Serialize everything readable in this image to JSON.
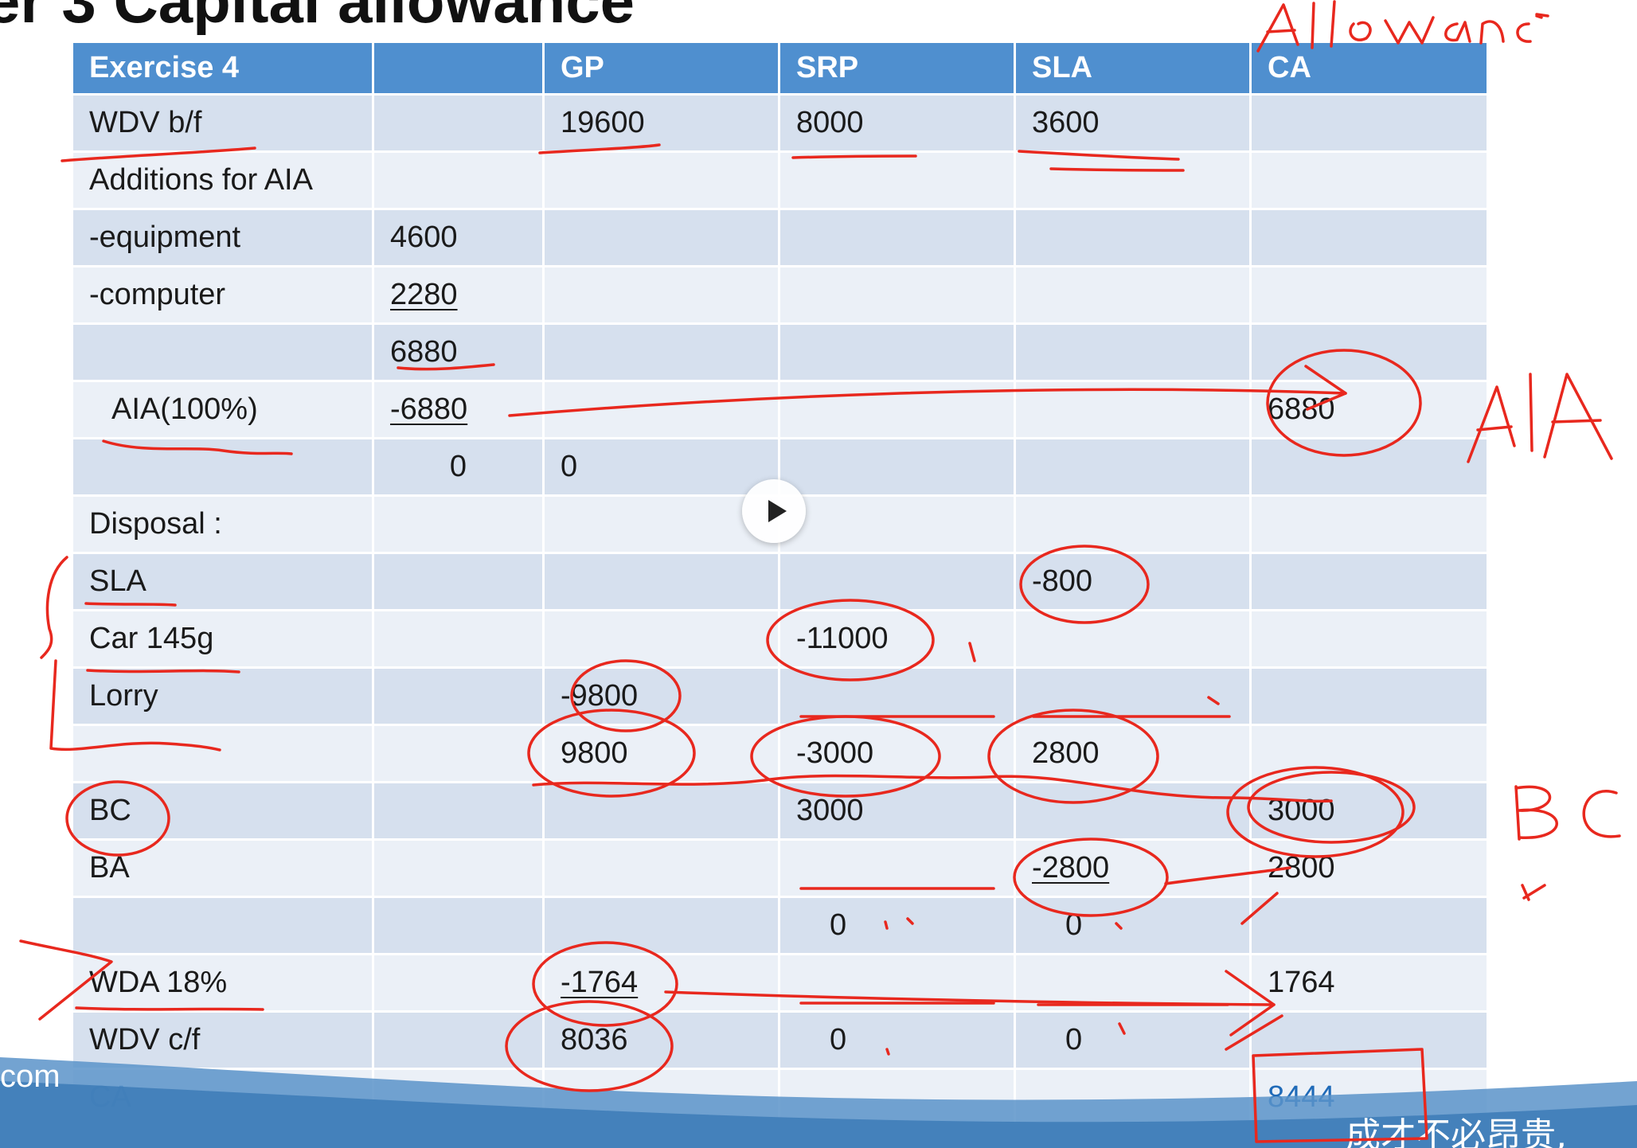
{
  "slide": {
    "title": "er 3  Capital allowance"
  },
  "table": {
    "headers": [
      "Exercise  4",
      "",
      "GP",
      "SRP",
      "SLA",
      "CA"
    ],
    "rows": [
      [
        "WDV b/f",
        "",
        "19600",
        "8000",
        "3600",
        ""
      ],
      [
        "Additions for AIA",
        "",
        "",
        "",
        "",
        ""
      ],
      [
        "-equipment",
        "4600",
        "",
        "",
        "",
        ""
      ],
      [
        "-computer",
        "2280",
        "",
        "",
        "",
        ""
      ],
      [
        "",
        "6880",
        "",
        "",
        "",
        ""
      ],
      [
        "AIA(100%)",
        "-6880",
        "",
        "",
        "",
        "6880"
      ],
      [
        "",
        "0",
        "0",
        "",
        "",
        ""
      ],
      [
        "Disposal :",
        "",
        "",
        "",
        "",
        ""
      ],
      [
        "SLA",
        "",
        "",
        "",
        "-800",
        ""
      ],
      [
        "Car 145g",
        "",
        "",
        "-11000",
        "",
        ""
      ],
      [
        "Lorry",
        "",
        "-9800",
        "",
        "",
        ""
      ],
      [
        "",
        "",
        "9800",
        "-3000",
        "2800",
        ""
      ],
      [
        "BC",
        "",
        "",
        "3000",
        "",
        "3000"
      ],
      [
        "BA",
        "",
        "",
        "",
        "-2800",
        "2800"
      ],
      [
        "",
        "",
        "",
        "0",
        "0",
        ""
      ],
      [
        "WDA 18%",
        "",
        "-1764",
        "",
        "",
        "1764"
      ],
      [
        "WDV c/f",
        "",
        "8036",
        "0",
        "0",
        ""
      ],
      [
        "CA",
        "",
        "",
        "",
        "",
        "8444"
      ]
    ]
  },
  "handwriting": {
    "top_right": "Allowance",
    "aia": "AIA",
    "bc": "BC"
  },
  "footer": {
    "left": "com",
    "right": "成才不必昂贵,"
  },
  "colors": {
    "header_bg": "#4f8fcf",
    "row_dark": "#d6e0ee",
    "row_light": "#ebf0f7",
    "annotation": "#e8281e"
  },
  "icons": {
    "play": "play-icon"
  }
}
